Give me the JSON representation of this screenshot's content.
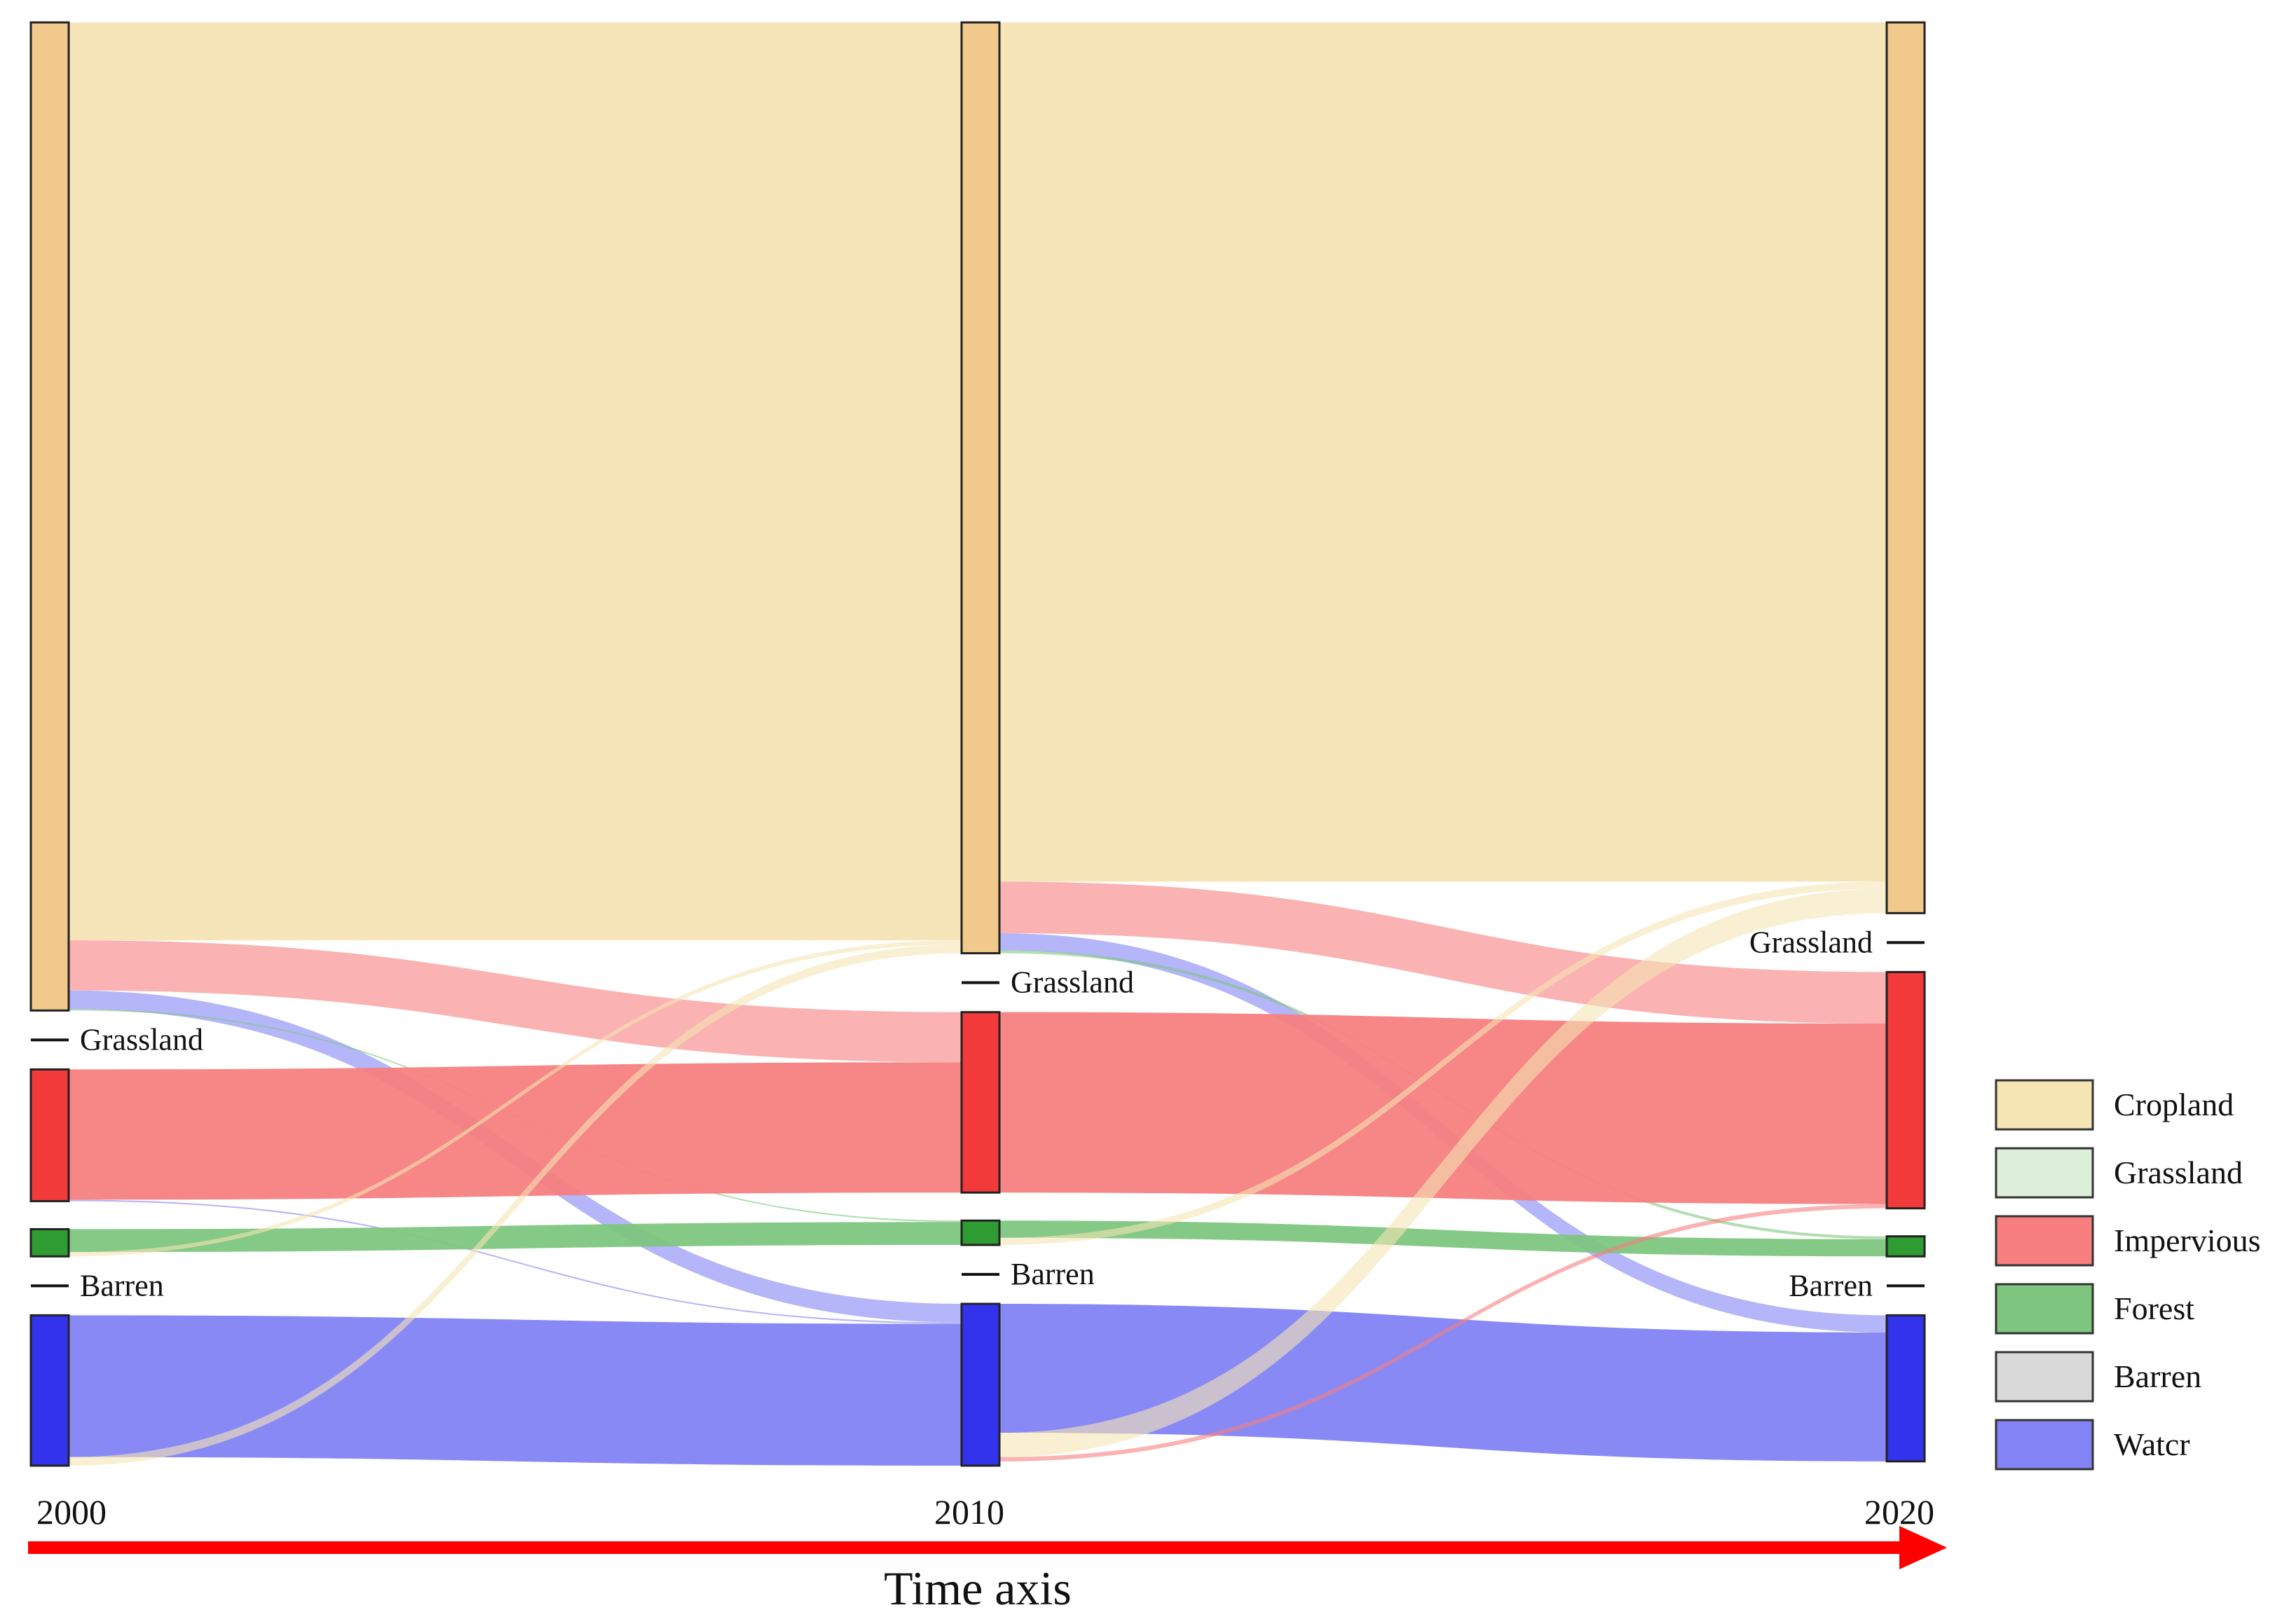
{
  "chart_data": {
    "type": "sankey",
    "title": "",
    "years": [
      "2000",
      "2010",
      "2020"
    ],
    "axis_title": "Time axis",
    "categories": [
      "Cropland",
      "Grassland",
      "Impervious",
      "Forest",
      "Barren",
      "Water"
    ],
    "colors": {
      "Cropland": "#f5e4b4",
      "Grassland": "#dcefd9",
      "Impervious": "#f77f7f",
      "Forest": "#7ec67f",
      "Barren": "#d9d9d9",
      "Water": "#8383f5"
    },
    "node_colors": {
      "Cropland": "#f2c98c",
      "Grassland": "#111111",
      "Impervious": "#f23a3a",
      "Forest": "#2f9b33",
      "Barren": "#111111",
      "Water": "#3333ee"
    },
    "node_values": {
      "2000": {
        "Cropland": 690,
        "Grassland": 2,
        "Impervious": 92,
        "Forest": 19,
        "Barren": 2,
        "Water": 105
      },
      "2010": {
        "Cropland": 650,
        "Grassland": 2,
        "Impervious": 126,
        "Forest": 17,
        "Barren": 2,
        "Water": 113
      },
      "2020": {
        "Cropland": 622,
        "Grassland": 2,
        "Impervious": 165,
        "Forest": 14,
        "Barren": 2,
        "Water": 102
      }
    },
    "flows": [
      {
        "period": "2000-2010",
        "from": "Cropland",
        "to": "Cropland",
        "value": 641
      },
      {
        "period": "2000-2010",
        "from": "Cropland",
        "to": "Impervious",
        "value": 35
      },
      {
        "period": "2000-2010",
        "from": "Cropland",
        "to": "Water",
        "value": 13
      },
      {
        "period": "2000-2010",
        "from": "Cropland",
        "to": "Forest",
        "value": 1
      },
      {
        "period": "2000-2010",
        "from": "Impervious",
        "to": "Impervious",
        "value": 91
      },
      {
        "period": "2000-2010",
        "from": "Impervious",
        "to": "Water",
        "value": 1
      },
      {
        "period": "2000-2010",
        "from": "Forest",
        "to": "Forest",
        "value": 16
      },
      {
        "period": "2000-2010",
        "from": "Forest",
        "to": "Cropland",
        "value": 3
      },
      {
        "period": "2000-2010",
        "from": "Water",
        "to": "Water",
        "value": 99
      },
      {
        "period": "2000-2010",
        "from": "Water",
        "to": "Cropland",
        "value": 6
      },
      {
        "period": "2010-2020",
        "from": "Cropland",
        "to": "Cropland",
        "value": 600
      },
      {
        "period": "2010-2020",
        "from": "Cropland",
        "to": "Impervious",
        "value": 36
      },
      {
        "period": "2010-2020",
        "from": "Cropland",
        "to": "Water",
        "value": 12
      },
      {
        "period": "2010-2020",
        "from": "Cropland",
        "to": "Forest",
        "value": 2
      },
      {
        "period": "2010-2020",
        "from": "Impervious",
        "to": "Impervious",
        "value": 126
      },
      {
        "period": "2010-2020",
        "from": "Forest",
        "to": "Forest",
        "value": 12
      },
      {
        "period": "2010-2020",
        "from": "Forest",
        "to": "Cropland",
        "value": 5
      },
      {
        "period": "2010-2020",
        "from": "Water",
        "to": "Water",
        "value": 90
      },
      {
        "period": "2010-2020",
        "from": "Water",
        "to": "Cropland",
        "value": 17
      },
      {
        "period": "2010-2020",
        "from": "Water",
        "to": "Impervious",
        "value": 3
      }
    ],
    "node_labels": {
      "2000": [
        "Grassland",
        "Barren"
      ],
      "2010": [
        "Grassland",
        "Barren"
      ],
      "2020": [
        "Grassland",
        "Barren"
      ]
    },
    "legend": {
      "position": "right",
      "entries": [
        "Cropland",
        "Grassland",
        "Impervious",
        "Forest",
        "Barren",
        "Watcr"
      ]
    },
    "arrow_color": "#ff0000"
  }
}
